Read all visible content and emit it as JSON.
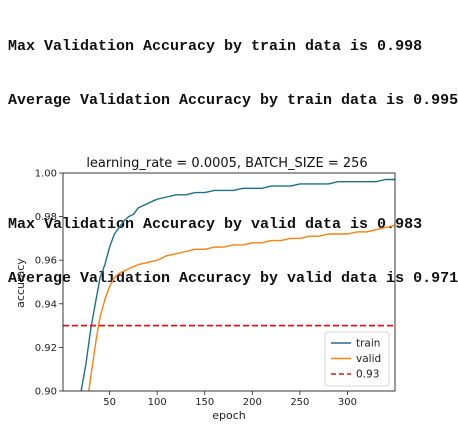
{
  "stats": {
    "line1": "Max Validation Accuracy by train data is 0.998",
    "line2": "Average Validation Accuracy by train data is 0.995",
    "line3": "Max Validation Accuracy by valid data is 0.983",
    "line4": "Average Validation Accuracy by valid data is 0.971"
  },
  "chart_data": {
    "type": "line",
    "title": "learning_rate = 0.0005, BATCH_SIZE = 256",
    "xlabel": "epoch",
    "ylabel": "accuracy",
    "xlim": [
      1,
      350
    ],
    "ylim": [
      0.9,
      1.0
    ],
    "xticks": [
      50,
      100,
      150,
      200,
      250,
      300
    ],
    "yticks": [
      0.9,
      0.92,
      0.94,
      0.96,
      0.98,
      1.0
    ],
    "ytick_labels": [
      "0.90",
      "0.92",
      "0.94",
      "0.96",
      "0.98",
      "1.00"
    ],
    "grid": false,
    "legend_position": "bottom-right",
    "series": [
      {
        "name": "train",
        "color": "#1f6f8b",
        "style": "solid",
        "x": [
          20,
          25,
          30,
          35,
          40,
          45,
          50,
          55,
          60,
          65,
          70,
          75,
          80,
          85,
          90,
          95,
          100,
          110,
          120,
          130,
          140,
          150,
          160,
          170,
          180,
          190,
          200,
          210,
          220,
          230,
          240,
          250,
          260,
          270,
          280,
          290,
          300,
          310,
          320,
          330,
          340,
          350
        ],
        "y": [
          0.9,
          0.912,
          0.928,
          0.94,
          0.952,
          0.958,
          0.966,
          0.972,
          0.975,
          0.978,
          0.98,
          0.981,
          0.984,
          0.985,
          0.986,
          0.987,
          0.988,
          0.989,
          0.99,
          0.99,
          0.991,
          0.991,
          0.992,
          0.992,
          0.992,
          0.993,
          0.993,
          0.993,
          0.994,
          0.994,
          0.994,
          0.995,
          0.995,
          0.995,
          0.995,
          0.996,
          0.996,
          0.996,
          0.996,
          0.996,
          0.997,
          0.997
        ]
      },
      {
        "name": "valid",
        "color": "#ff7f0e",
        "style": "solid",
        "x": [
          28,
          32,
          36,
          40,
          45,
          50,
          55,
          60,
          65,
          70,
          75,
          80,
          90,
          100,
          110,
          120,
          130,
          140,
          150,
          160,
          170,
          180,
          190,
          200,
          210,
          220,
          230,
          240,
          250,
          260,
          270,
          280,
          290,
          300,
          310,
          320,
          330,
          340,
          350
        ],
        "y": [
          0.9,
          0.912,
          0.924,
          0.934,
          0.942,
          0.948,
          0.952,
          0.954,
          0.955,
          0.956,
          0.957,
          0.958,
          0.959,
          0.96,
          0.962,
          0.963,
          0.964,
          0.965,
          0.965,
          0.966,
          0.966,
          0.967,
          0.967,
          0.968,
          0.968,
          0.969,
          0.969,
          0.97,
          0.97,
          0.971,
          0.971,
          0.972,
          0.972,
          0.972,
          0.973,
          0.973,
          0.974,
          0.975,
          0.976
        ]
      },
      {
        "name": "0.93",
        "color": "#e0141b",
        "style": "dashed",
        "x": [
          1,
          350
        ],
        "y": [
          0.93,
          0.93
        ]
      }
    ]
  }
}
